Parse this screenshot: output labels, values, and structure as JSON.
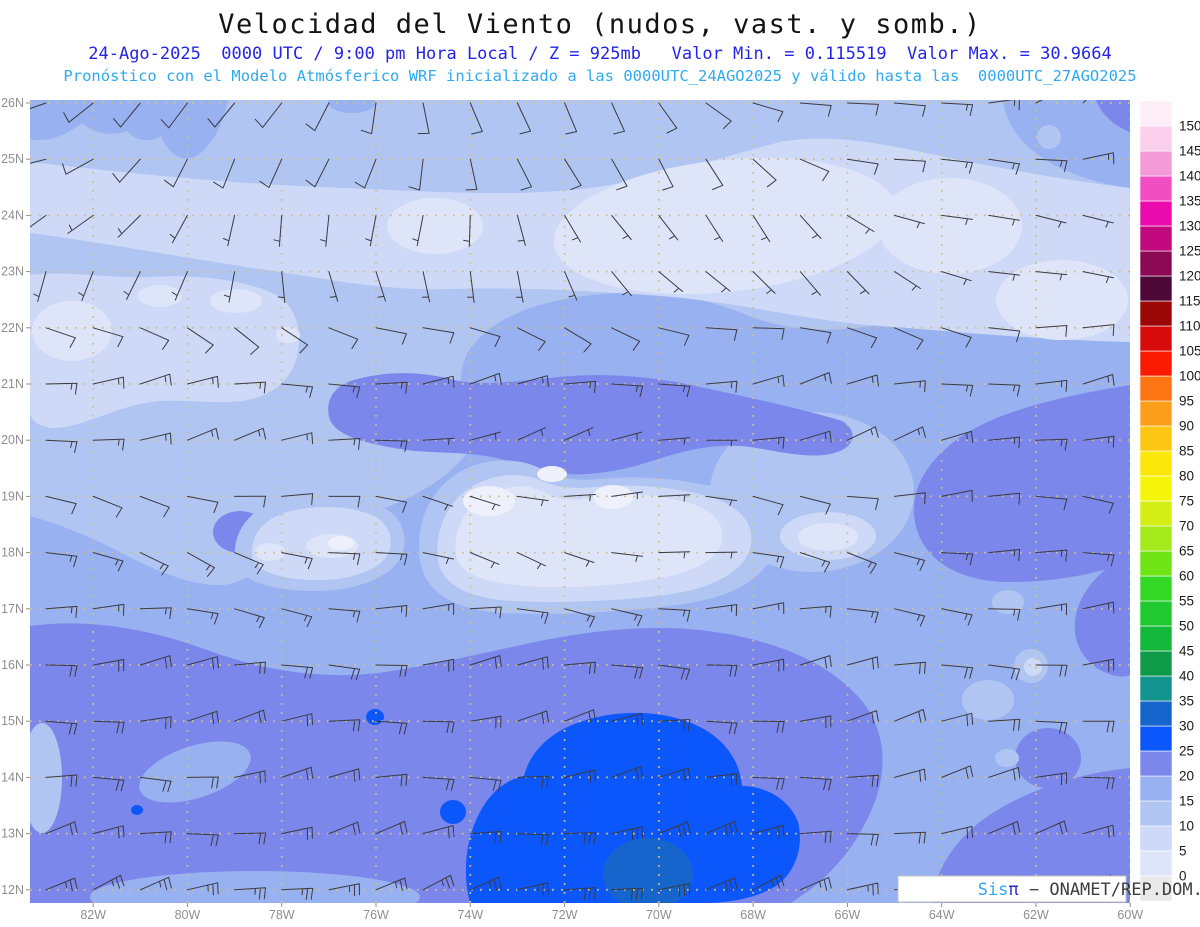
{
  "header": {
    "title": "Velocidad del Viento (nudos, vast. y somb.)",
    "subtitle1": "24-Ago-2025  0000 UTC / 9:00 pm Hora Local / Z = 925mb   Valor Min. = 0.115519  Valor Max. = 30.9664",
    "subtitle2": "Pronóstico con el Modelo Atmósferico WRF inicializado a las 0000UTC_24AGO2025 y válido hasta las  0000UTC_27AGO2025",
    "title_color": "#141414",
    "subtitle1_color": "#2424e8",
    "subtitle2_color": "#2fa9ef"
  },
  "watermark": {
    "brand": "Sis",
    "pi": "π",
    "separator": " − ",
    "org": "ONAMET/REP.DOM.",
    "brand_color": "#31a6f8",
    "pi_color": "#2b2bd0",
    "org_color": "#3c3c3c"
  },
  "axes": {
    "label_color": "#8f8f8f",
    "grid_dot_color": "#cfc089",
    "lat_ticks": [
      {
        "lat": 26,
        "label": "26N"
      },
      {
        "lat": 25,
        "label": "25N"
      },
      {
        "lat": 24,
        "label": "24N"
      },
      {
        "lat": 23,
        "label": "23N"
      },
      {
        "lat": 22,
        "label": "22N"
      },
      {
        "lat": 21,
        "label": "21N"
      },
      {
        "lat": 20,
        "label": "20N"
      },
      {
        "lat": 19,
        "label": "19N"
      },
      {
        "lat": 18,
        "label": "18N"
      },
      {
        "lat": 17,
        "label": "17N"
      },
      {
        "lat": 16,
        "label": "16N"
      },
      {
        "lat": 15,
        "label": "15N"
      },
      {
        "lat": 14,
        "label": "14N"
      },
      {
        "lat": 13,
        "label": "13N"
      },
      {
        "lat": 12,
        "label": "12N"
      }
    ],
    "lon_ticks": [
      {
        "lon": -82,
        "label": "82W"
      },
      {
        "lon": -80,
        "label": "80W"
      },
      {
        "lon": -78,
        "label": "78W"
      },
      {
        "lon": -76,
        "label": "76W"
      },
      {
        "lon": -74,
        "label": "74W"
      },
      {
        "lon": -72,
        "label": "72W"
      },
      {
        "lon": -70,
        "label": "70W"
      },
      {
        "lon": -68,
        "label": "68W"
      },
      {
        "lon": -66,
        "label": "66W"
      },
      {
        "lon": -64,
        "label": "64W"
      },
      {
        "lon": -62,
        "label": "62W"
      },
      {
        "lon": -60,
        "label": "60W"
      }
    ]
  },
  "chart_data": {
    "type": "heatmap",
    "title": "Velocidad del Viento (nudos, vast. y somb.)",
    "variable": "wind speed at 925mb (shaded) with wind barbs (vectors)",
    "units": "nudos (knots)",
    "model": "WRF",
    "run_date": "24-Ago-2025 0000 UTC",
    "local_time": "9:00 pm Hora Local",
    "level_mb": 925,
    "init": "0000UTC_24AGO2025",
    "valid_until": "0000UTC_27AGO2025",
    "value_min": 0.115519,
    "value_max": 30.9664,
    "lon_range": [
      -83.34,
      -60.0
    ],
    "lat_range": [
      12,
      26
    ],
    "contour_interval": 5,
    "legend_position": "right",
    "grid": {
      "lat_step_deg": 1,
      "lon_step_deg": 2,
      "style": "dotted"
    },
    "colorbar": {
      "values": [
        0,
        5,
        10,
        15,
        20,
        25,
        30,
        35,
        40,
        45,
        50,
        55,
        60,
        65,
        70,
        75,
        80,
        85,
        90,
        95,
        100,
        105,
        110,
        115,
        120,
        125,
        130,
        135,
        140,
        145,
        150
      ],
      "colors_bottom_to_top": [
        "#e9e9e9",
        "#dfe5f9",
        "#cdd9f7",
        "#b1c5f3",
        "#98b1f0",
        "#7b87ea",
        "#0b57fb",
        "#1565cd",
        "#13948e",
        "#0e9a49",
        "#13b83a",
        "#1fc92f",
        "#33d924",
        "#6fe414",
        "#a6e91d",
        "#d2ee14",
        "#f5f50a",
        "#fde60a",
        "#fdc613",
        "#fd9e1b",
        "#fd7514",
        "#fb1a02",
        "#d60c0c",
        "#9c0707",
        "#4d0837",
        "#8c0a55",
        "#c20a7e",
        "#ea0aae",
        "#f24ec4",
        "#f59ad8",
        "#fbd0ec",
        "#fdeef8"
      ]
    },
    "wind_barbs": {
      "lon_start": -83,
      "lon_end": -60,
      "lon_step": 1,
      "rows": [
        {
          "lat": 26,
          "dir_w": 250,
          "dir_e": 45,
          "speed": 10
        },
        {
          "lat": 25,
          "dir_w": 243,
          "dir_e": 65,
          "speed": 10
        },
        {
          "lat": 24,
          "dir_w": 228,
          "dir_e": 85,
          "speed": 5
        },
        {
          "lat": 23,
          "dir_w": 205,
          "dir_e": 95,
          "speed": 5
        },
        {
          "lat": 22,
          "dir_w": 120,
          "dir_e": 95,
          "speed": 10
        },
        {
          "lat": 21,
          "dir_w": 85,
          "dir_e": 80,
          "speed": 15
        },
        {
          "lat": 20,
          "dir_w": 80,
          "dir_e": 75,
          "speed": 15
        },
        {
          "lat": 19,
          "dir_w": 100,
          "dir_e": 90,
          "speed": 10
        },
        {
          "lat": 18,
          "dir_w": 108,
          "dir_e": 95,
          "speed": 15
        },
        {
          "lat": 17,
          "dir_w": 95,
          "dir_e": 90,
          "speed": 15
        },
        {
          "lat": 16,
          "dir_w": 85,
          "dir_e": 85,
          "speed": 20
        },
        {
          "lat": 15,
          "dir_w": 82,
          "dir_e": 80,
          "speed": 20
        },
        {
          "lat": 14,
          "dir_w": 85,
          "dir_e": 80,
          "speed": 20
        },
        {
          "lat": 13,
          "dir_w": 80,
          "dir_e": 78,
          "speed": 20
        },
        {
          "lat": 12,
          "dir_w": 75,
          "dir_e": 75,
          "speed": 25
        }
      ],
      "zones": [
        {
          "name": "calm-hispaniola",
          "lat": [
            17.6,
            20.4
          ],
          "lon": [
            -75.5,
            -68.2
          ],
          "speed": 5
        },
        {
          "name": "strong-south-central",
          "lat": [
            12,
            13.9
          ],
          "lon": [
            -72.6,
            -68.4
          ],
          "speed": 30
        },
        {
          "name": "northeast-corner",
          "lat": [
            24.4,
            26.2
          ],
          "lon": [
            -64,
            -59.8
          ],
          "speed": 15
        }
      ]
    }
  },
  "map": {
    "background": "#ffffff",
    "coast_color": "#0b0b10",
    "barb_color": "#3a3a42",
    "band_colors": {
      "b0": "#dfe5f9",
      "b5": "#cdd9f7",
      "b10": "#b1c5f3",
      "b15": "#98b1f0",
      "b20": "#7b87ea",
      "b25": "#0b57fb",
      "b30": "#1565cd",
      "near_zero": "#eef1fb"
    }
  }
}
